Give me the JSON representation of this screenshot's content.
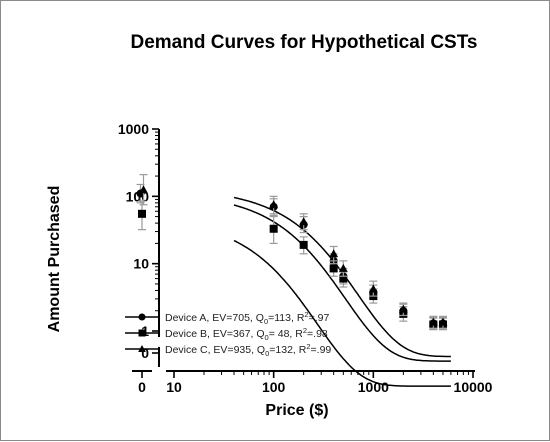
{
  "chart_data": {
    "type": "scatter",
    "title": "Demand Curves for Hypothetical CSTs",
    "xlabel": "Price ($)",
    "ylabel": "Amount Purchased",
    "x_scale": "log",
    "y_scale": "log",
    "xlim": [
      10,
      10000
    ],
    "ylim": [
      1,
      1000
    ],
    "x_ticks": [
      "0",
      "10",
      "100",
      "1000",
      "10000"
    ],
    "y_ticks": [
      "0",
      "1",
      "10",
      "100",
      "1000"
    ],
    "x_break": true,
    "y_break": true,
    "legend_position": "bottom-left",
    "series": [
      {
        "name": "Device A",
        "label_text": "Device A, EV=705, Q",
        "label_sub": "0",
        "label_rest": "=113, R",
        "label_sup": "2",
        "label_end": "=.97",
        "marker": "circle",
        "EV": 705,
        "Q0": 113,
        "R2": 0.97,
        "points": [
          {
            "x": 0,
            "y": 110,
            "err_lo": 80,
            "err_hi": 150
          },
          {
            "x": 100,
            "y": 70,
            "err_lo": 52,
            "err_hi": 92
          },
          {
            "x": 200,
            "y": 38,
            "err_lo": 29,
            "err_hi": 50
          },
          {
            "x": 400,
            "y": 11,
            "err_lo": 8.5,
            "err_hi": 14
          },
          {
            "x": 500,
            "y": 6.5,
            "err_lo": 5,
            "err_hi": 8.5
          },
          {
            "x": 1000,
            "y": 3.8,
            "err_lo": 3,
            "err_hi": 4.8
          },
          {
            "x": 2000,
            "y": 2.0,
            "err_lo": 1.6,
            "err_hi": 2.5
          },
          {
            "x": 4000,
            "y": 1.3,
            "err_lo": 1.05,
            "err_hi": 1.6
          },
          {
            "x": 5000,
            "y": 1.3,
            "err_lo": 1.05,
            "err_hi": 1.6
          }
        ]
      },
      {
        "name": "Device B",
        "label_text": "Device B, EV=367, Q",
        "label_sub": "0",
        "label_rest": "= 48, R",
        "label_sup": "2",
        "label_end": "=.98",
        "marker": "square",
        "EV": 367,
        "Q0": 48,
        "R2": 0.98,
        "points": [
          {
            "x": 0,
            "y": 55,
            "err_lo": 32,
            "err_hi": 85
          },
          {
            "x": 100,
            "y": 33,
            "err_lo": 20,
            "err_hi": 50
          },
          {
            "x": 200,
            "y": 19,
            "err_lo": 14,
            "err_hi": 25
          },
          {
            "x": 400,
            "y": 8.5,
            "err_lo": 6.5,
            "err_hi": 11
          },
          {
            "x": 500,
            "y": 6.0,
            "err_lo": 4.5,
            "err_hi": 7.5
          },
          {
            "x": 1000,
            "y": 3.3,
            "err_lo": 2.6,
            "err_hi": 4.2
          },
          {
            "x": 2000,
            "y": 1.8,
            "err_lo": 1.4,
            "err_hi": 2.3
          },
          {
            "x": 4000,
            "y": 1.25,
            "err_lo": 1.05,
            "err_hi": 1.55
          },
          {
            "x": 5000,
            "y": 1.25,
            "err_lo": 1.05,
            "err_hi": 1.55
          }
        ]
      },
      {
        "name": "Device C",
        "label_text": "Device C, EV=935, Q",
        "label_sub": "0",
        "label_rest": "=132, R",
        "label_sup": "2",
        "label_end": "=.99",
        "marker": "triangle",
        "EV": 935,
        "Q0": 132,
        "R2": 0.99,
        "points": [
          {
            "x": 0,
            "y": 125,
            "err_lo": 75,
            "err_hi": 210
          },
          {
            "x": 100,
            "y": 75,
            "err_lo": 55,
            "err_hi": 100
          },
          {
            "x": 200,
            "y": 42,
            "err_lo": 32,
            "err_hi": 55
          },
          {
            "x": 400,
            "y": 14,
            "err_lo": 10,
            "err_hi": 18
          },
          {
            "x": 500,
            "y": 8.5,
            "err_lo": 6.5,
            "err_hi": 11
          },
          {
            "x": 1000,
            "y": 4.2,
            "err_lo": 3.3,
            "err_hi": 5.5
          },
          {
            "x": 2000,
            "y": 2.1,
            "err_lo": 1.7,
            "err_hi": 2.6
          },
          {
            "x": 4000,
            "y": 1.35,
            "err_lo": 1.1,
            "err_hi": 1.65
          },
          {
            "x": 5000,
            "y": 1.35,
            "err_lo": 1.1,
            "err_hi": 1.65
          }
        ]
      }
    ]
  }
}
